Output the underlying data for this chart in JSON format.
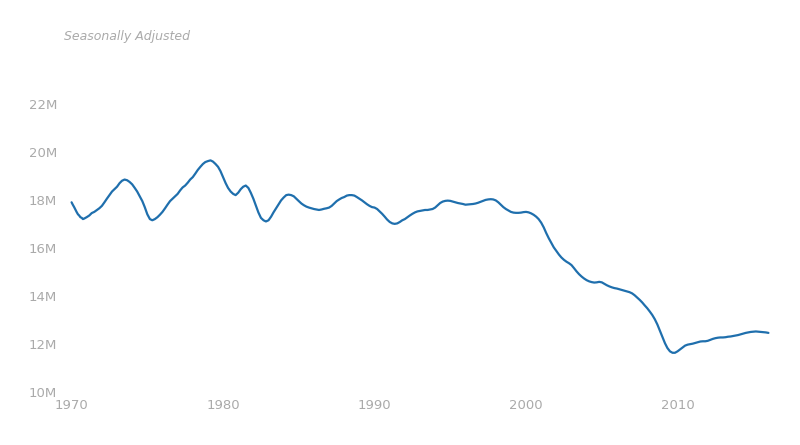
{
  "subtitle": "Seasonally Adjusted",
  "line_color": "#1f6fad",
  "background_color": "#ffffff",
  "xlim": [
    1969.5,
    2016.5
  ],
  "ylim": [
    10000,
    23000
  ],
  "yticks": [
    10000,
    12000,
    14000,
    16000,
    18000,
    20000,
    22000
  ],
  "ytick_labels": [
    "10M",
    "12M",
    "14M",
    "16M",
    "18M",
    "20M",
    "22M"
  ],
  "xticks": [
    1970,
    1980,
    1990,
    2000,
    2010
  ],
  "line_width": 1.6,
  "data": [
    [
      1970.0,
      17900
    ],
    [
      1970.08,
      17800
    ],
    [
      1970.17,
      17700
    ],
    [
      1970.25,
      17600
    ],
    [
      1970.33,
      17500
    ],
    [
      1970.42,
      17400
    ],
    [
      1970.5,
      17350
    ],
    [
      1970.58,
      17280
    ],
    [
      1970.67,
      17250
    ],
    [
      1970.75,
      17200
    ],
    [
      1970.83,
      17220
    ],
    [
      1970.92,
      17250
    ],
    [
      1971.0,
      17280
    ],
    [
      1971.17,
      17350
    ],
    [
      1971.33,
      17450
    ],
    [
      1971.5,
      17500
    ],
    [
      1971.67,
      17580
    ],
    [
      1971.83,
      17650
    ],
    [
      1972.0,
      17750
    ],
    [
      1972.17,
      17900
    ],
    [
      1972.33,
      18050
    ],
    [
      1972.5,
      18200
    ],
    [
      1972.67,
      18350
    ],
    [
      1972.83,
      18450
    ],
    [
      1973.0,
      18550
    ],
    [
      1973.17,
      18700
    ],
    [
      1973.33,
      18800
    ],
    [
      1973.5,
      18850
    ],
    [
      1973.67,
      18820
    ],
    [
      1973.83,
      18750
    ],
    [
      1974.0,
      18650
    ],
    [
      1974.17,
      18500
    ],
    [
      1974.33,
      18350
    ],
    [
      1974.5,
      18150
    ],
    [
      1974.67,
      17950
    ],
    [
      1974.83,
      17700
    ],
    [
      1975.0,
      17400
    ],
    [
      1975.17,
      17200
    ],
    [
      1975.33,
      17150
    ],
    [
      1975.5,
      17200
    ],
    [
      1975.67,
      17280
    ],
    [
      1975.83,
      17380
    ],
    [
      1976.0,
      17500
    ],
    [
      1976.17,
      17650
    ],
    [
      1976.33,
      17800
    ],
    [
      1976.5,
      17950
    ],
    [
      1976.67,
      18050
    ],
    [
      1976.83,
      18150
    ],
    [
      1977.0,
      18250
    ],
    [
      1977.17,
      18400
    ],
    [
      1977.33,
      18520
    ],
    [
      1977.5,
      18600
    ],
    [
      1977.67,
      18720
    ],
    [
      1977.83,
      18850
    ],
    [
      1978.0,
      18950
    ],
    [
      1978.17,
      19100
    ],
    [
      1978.33,
      19250
    ],
    [
      1978.5,
      19380
    ],
    [
      1978.67,
      19500
    ],
    [
      1978.83,
      19580
    ],
    [
      1979.0,
      19620
    ],
    [
      1979.17,
      19650
    ],
    [
      1979.33,
      19600
    ],
    [
      1979.5,
      19500
    ],
    [
      1979.67,
      19380
    ],
    [
      1979.83,
      19200
    ],
    [
      1980.0,
      18950
    ],
    [
      1980.17,
      18700
    ],
    [
      1980.33,
      18500
    ],
    [
      1980.5,
      18350
    ],
    [
      1980.67,
      18250
    ],
    [
      1980.83,
      18200
    ],
    [
      1981.0,
      18300
    ],
    [
      1981.17,
      18450
    ],
    [
      1981.33,
      18550
    ],
    [
      1981.5,
      18600
    ],
    [
      1981.67,
      18500
    ],
    [
      1981.83,
      18300
    ],
    [
      1982.0,
      18050
    ],
    [
      1982.17,
      17750
    ],
    [
      1982.33,
      17480
    ],
    [
      1982.5,
      17250
    ],
    [
      1982.67,
      17150
    ],
    [
      1982.83,
      17100
    ],
    [
      1983.0,
      17150
    ],
    [
      1983.17,
      17300
    ],
    [
      1983.33,
      17480
    ],
    [
      1983.5,
      17650
    ],
    [
      1983.67,
      17820
    ],
    [
      1983.83,
      17980
    ],
    [
      1984.0,
      18100
    ],
    [
      1984.17,
      18200
    ],
    [
      1984.33,
      18220
    ],
    [
      1984.5,
      18200
    ],
    [
      1984.67,
      18150
    ],
    [
      1984.83,
      18050
    ],
    [
      1985.0,
      17950
    ],
    [
      1985.17,
      17850
    ],
    [
      1985.33,
      17780
    ],
    [
      1985.5,
      17720
    ],
    [
      1985.67,
      17680
    ],
    [
      1985.83,
      17650
    ],
    [
      1986.0,
      17620
    ],
    [
      1986.17,
      17600
    ],
    [
      1986.33,
      17580
    ],
    [
      1986.5,
      17600
    ],
    [
      1986.67,
      17630
    ],
    [
      1986.83,
      17650
    ],
    [
      1987.0,
      17680
    ],
    [
      1987.17,
      17750
    ],
    [
      1987.33,
      17850
    ],
    [
      1987.5,
      17950
    ],
    [
      1987.67,
      18020
    ],
    [
      1987.83,
      18080
    ],
    [
      1988.0,
      18120
    ],
    [
      1988.17,
      18180
    ],
    [
      1988.33,
      18200
    ],
    [
      1988.5,
      18200
    ],
    [
      1988.67,
      18180
    ],
    [
      1988.83,
      18120
    ],
    [
      1989.0,
      18050
    ],
    [
      1989.17,
      17980
    ],
    [
      1989.33,
      17900
    ],
    [
      1989.5,
      17820
    ],
    [
      1989.67,
      17750
    ],
    [
      1989.83,
      17700
    ],
    [
      1990.0,
      17680
    ],
    [
      1990.17,
      17620
    ],
    [
      1990.33,
      17520
    ],
    [
      1990.5,
      17420
    ],
    [
      1990.67,
      17300
    ],
    [
      1990.83,
      17180
    ],
    [
      1991.0,
      17080
    ],
    [
      1991.17,
      17020
    ],
    [
      1991.33,
      17000
    ],
    [
      1991.5,
      17020
    ],
    [
      1991.67,
      17080
    ],
    [
      1991.83,
      17150
    ],
    [
      1992.0,
      17200
    ],
    [
      1992.17,
      17280
    ],
    [
      1992.33,
      17350
    ],
    [
      1992.5,
      17420
    ],
    [
      1992.67,
      17480
    ],
    [
      1992.83,
      17520
    ],
    [
      1993.0,
      17540
    ],
    [
      1993.17,
      17560
    ],
    [
      1993.33,
      17580
    ],
    [
      1993.5,
      17580
    ],
    [
      1993.67,
      17600
    ],
    [
      1993.83,
      17620
    ],
    [
      1994.0,
      17680
    ],
    [
      1994.17,
      17780
    ],
    [
      1994.33,
      17870
    ],
    [
      1994.5,
      17930
    ],
    [
      1994.67,
      17960
    ],
    [
      1994.83,
      17970
    ],
    [
      1995.0,
      17960
    ],
    [
      1995.17,
      17930
    ],
    [
      1995.33,
      17900
    ],
    [
      1995.5,
      17870
    ],
    [
      1995.67,
      17850
    ],
    [
      1995.83,
      17830
    ],
    [
      1996.0,
      17800
    ],
    [
      1996.17,
      17810
    ],
    [
      1996.33,
      17820
    ],
    [
      1996.5,
      17830
    ],
    [
      1996.67,
      17850
    ],
    [
      1996.83,
      17880
    ],
    [
      1997.0,
      17920
    ],
    [
      1997.17,
      17960
    ],
    [
      1997.33,
      18000
    ],
    [
      1997.5,
      18020
    ],
    [
      1997.67,
      18030
    ],
    [
      1997.83,
      18020
    ],
    [
      1998.0,
      17980
    ],
    [
      1998.17,
      17900
    ],
    [
      1998.33,
      17800
    ],
    [
      1998.5,
      17700
    ],
    [
      1998.67,
      17620
    ],
    [
      1998.83,
      17560
    ],
    [
      1999.0,
      17500
    ],
    [
      1999.17,
      17470
    ],
    [
      1999.33,
      17460
    ],
    [
      1999.5,
      17460
    ],
    [
      1999.67,
      17470
    ],
    [
      1999.83,
      17490
    ],
    [
      2000.0,
      17500
    ],
    [
      2000.17,
      17480
    ],
    [
      2000.33,
      17440
    ],
    [
      2000.5,
      17380
    ],
    [
      2000.67,
      17300
    ],
    [
      2000.83,
      17200
    ],
    [
      2001.0,
      17050
    ],
    [
      2001.17,
      16850
    ],
    [
      2001.33,
      16620
    ],
    [
      2001.5,
      16400
    ],
    [
      2001.67,
      16200
    ],
    [
      2001.83,
      16020
    ],
    [
      2002.0,
      15870
    ],
    [
      2002.17,
      15720
    ],
    [
      2002.33,
      15600
    ],
    [
      2002.5,
      15500
    ],
    [
      2002.67,
      15420
    ],
    [
      2002.83,
      15360
    ],
    [
      2003.0,
      15280
    ],
    [
      2003.17,
      15150
    ],
    [
      2003.33,
      15020
    ],
    [
      2003.5,
      14900
    ],
    [
      2003.67,
      14800
    ],
    [
      2003.83,
      14720
    ],
    [
      2004.0,
      14650
    ],
    [
      2004.17,
      14600
    ],
    [
      2004.33,
      14570
    ],
    [
      2004.5,
      14550
    ],
    [
      2004.67,
      14560
    ],
    [
      2004.83,
      14580
    ],
    [
      2005.0,
      14560
    ],
    [
      2005.17,
      14500
    ],
    [
      2005.33,
      14440
    ],
    [
      2005.5,
      14390
    ],
    [
      2005.67,
      14350
    ],
    [
      2005.83,
      14320
    ],
    [
      2006.0,
      14300
    ],
    [
      2006.17,
      14270
    ],
    [
      2006.33,
      14240
    ],
    [
      2006.5,
      14210
    ],
    [
      2006.67,
      14180
    ],
    [
      2006.83,
      14150
    ],
    [
      2007.0,
      14100
    ],
    [
      2007.17,
      14020
    ],
    [
      2007.33,
      13930
    ],
    [
      2007.5,
      13830
    ],
    [
      2007.67,
      13720
    ],
    [
      2007.83,
      13600
    ],
    [
      2008.0,
      13480
    ],
    [
      2008.17,
      13340
    ],
    [
      2008.33,
      13200
    ],
    [
      2008.5,
      13020
    ],
    [
      2008.67,
      12800
    ],
    [
      2008.83,
      12550
    ],
    [
      2009.0,
      12280
    ],
    [
      2009.17,
      12020
    ],
    [
      2009.33,
      11820
    ],
    [
      2009.5,
      11680
    ],
    [
      2009.67,
      11620
    ],
    [
      2009.83,
      11620
    ],
    [
      2010.0,
      11680
    ],
    [
      2010.17,
      11760
    ],
    [
      2010.33,
      11840
    ],
    [
      2010.5,
      11920
    ],
    [
      2010.67,
      11960
    ],
    [
      2010.83,
      11980
    ],
    [
      2011.0,
      12000
    ],
    [
      2011.17,
      12030
    ],
    [
      2011.33,
      12060
    ],
    [
      2011.5,
      12090
    ],
    [
      2011.67,
      12100
    ],
    [
      2011.83,
      12100
    ],
    [
      2012.0,
      12120
    ],
    [
      2012.17,
      12160
    ],
    [
      2012.33,
      12200
    ],
    [
      2012.5,
      12230
    ],
    [
      2012.67,
      12250
    ],
    [
      2012.83,
      12260
    ],
    [
      2013.0,
      12260
    ],
    [
      2013.17,
      12270
    ],
    [
      2013.33,
      12290
    ],
    [
      2013.5,
      12300
    ],
    [
      2013.67,
      12320
    ],
    [
      2013.83,
      12340
    ],
    [
      2014.0,
      12360
    ],
    [
      2014.17,
      12390
    ],
    [
      2014.33,
      12420
    ],
    [
      2014.5,
      12450
    ],
    [
      2014.67,
      12470
    ],
    [
      2014.83,
      12490
    ],
    [
      2015.0,
      12500
    ],
    [
      2015.17,
      12510
    ],
    [
      2015.33,
      12500
    ],
    [
      2015.5,
      12490
    ],
    [
      2015.67,
      12480
    ],
    [
      2015.83,
      12470
    ],
    [
      2016.0,
      12450
    ]
  ]
}
